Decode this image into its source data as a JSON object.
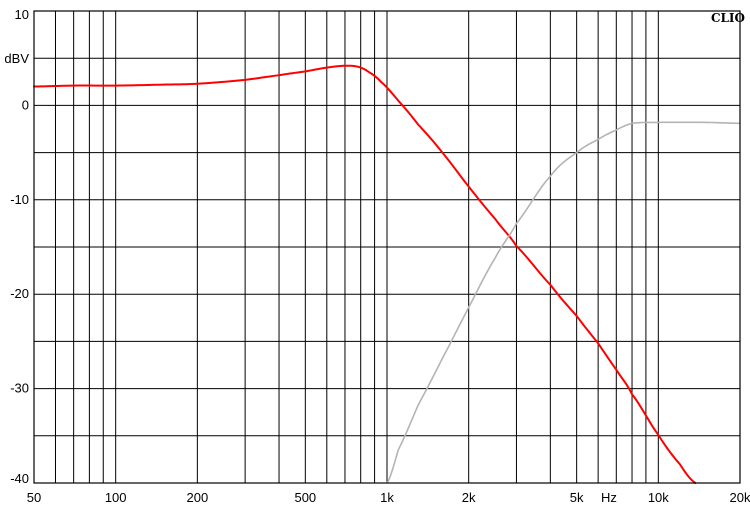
{
  "chart_data": {
    "type": "line",
    "brand": "CLIO",
    "ylabel": "dBV",
    "xlabel": "Hz",
    "xscale": "log",
    "xlim": [
      50,
      20000
    ],
    "ylim": [
      -40,
      10
    ],
    "grid": true,
    "x_ticks": [
      {
        "value": 50,
        "label": "50"
      },
      {
        "value": 100,
        "label": "100"
      },
      {
        "value": 200,
        "label": "200"
      },
      {
        "value": 500,
        "label": "500"
      },
      {
        "value": 1000,
        "label": "1k"
      },
      {
        "value": 2000,
        "label": "2k"
      },
      {
        "value": 5000,
        "label": "5k"
      },
      {
        "value": 10000,
        "label": "10k"
      },
      {
        "value": 20000,
        "label": "20k"
      }
    ],
    "y_ticks": [
      {
        "value": 10,
        "label": "10"
      },
      {
        "value": 0,
        "label": "0"
      },
      {
        "value": -10,
        "label": "-10"
      },
      {
        "value": -20,
        "label": "-20"
      },
      {
        "value": -30,
        "label": "-30"
      },
      {
        "value": -40,
        "label": "-40"
      }
    ],
    "series": [
      {
        "color": "#ff0000",
        "x": [
          50,
          70,
          100,
          150,
          200,
          300,
          400,
          500,
          600,
          700,
          780,
          850,
          950,
          1100,
          1300,
          1600,
          2000,
          2500,
          3000,
          4000,
          5000,
          6000,
          7000,
          8000,
          10000,
          12000,
          13700
        ],
        "y": [
          2.0,
          2.1,
          2.1,
          2.2,
          2.3,
          2.7,
          3.2,
          3.6,
          4.0,
          4.2,
          4.1,
          3.6,
          2.5,
          0.5,
          -2.0,
          -5.0,
          -8.6,
          -12.0,
          -14.9,
          -19.0,
          -22.3,
          -25.2,
          -28.0,
          -30.6,
          -34.9,
          -38.0,
          -40.0
        ]
      },
      {
        "color": "#b4b4b4",
        "x": [
          1000,
          1100,
          1300,
          1600,
          2000,
          2500,
          3000,
          4000,
          5000,
          6000,
          7000,
          8000,
          10000,
          15000,
          20000
        ],
        "y": [
          -40.0,
          -36.5,
          -31.8,
          -26.8,
          -21.4,
          -16.2,
          -12.5,
          -7.5,
          -5.0,
          -3.6,
          -2.6,
          -1.9,
          -1.8,
          -1.8,
          -1.9
        ]
      }
    ]
  }
}
